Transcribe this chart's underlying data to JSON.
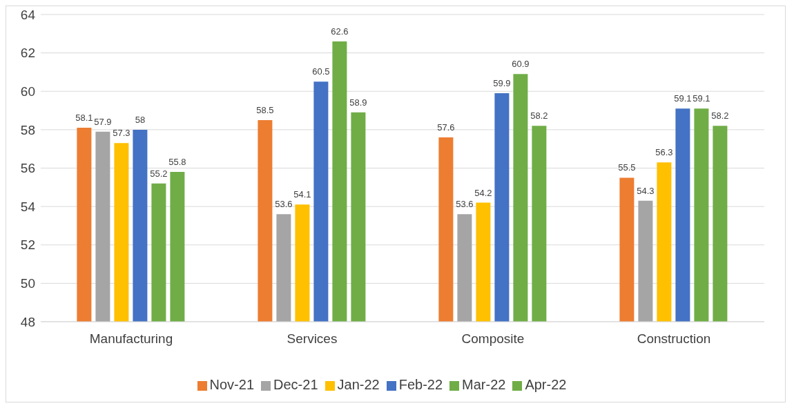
{
  "chart_data": {
    "type": "bar",
    "categories": [
      "Manufacturing",
      "Services",
      "Composite",
      "Construction"
    ],
    "series": [
      {
        "name": "Nov-21",
        "color": "#ed7d31",
        "values": [
          58.1,
          58.5,
          57.6,
          55.5
        ]
      },
      {
        "name": "Dec-21",
        "color": "#a5a5a5",
        "values": [
          57.9,
          53.6,
          53.6,
          54.3
        ]
      },
      {
        "name": "Jan-22",
        "color": "#ffc000",
        "values": [
          57.3,
          54.1,
          54.2,
          56.3
        ]
      },
      {
        "name": "Feb-22",
        "color": "#4472c4",
        "values": [
          58,
          60.5,
          59.9,
          59.1
        ]
      },
      {
        "name": "Mar-22",
        "color": "#70ad47",
        "values": [
          55.2,
          62.6,
          60.9,
          59.1
        ]
      },
      {
        "name": "Apr-22",
        "color": "#70ad47",
        "values": [
          55.8,
          58.9,
          58.2,
          58.2
        ]
      }
    ],
    "ylim": [
      48,
      64
    ],
    "yticks": [
      48,
      50,
      52,
      54,
      56,
      58,
      60,
      62,
      64
    ],
    "grid": "y",
    "legend": "bottom",
    "data_labels": true
  }
}
